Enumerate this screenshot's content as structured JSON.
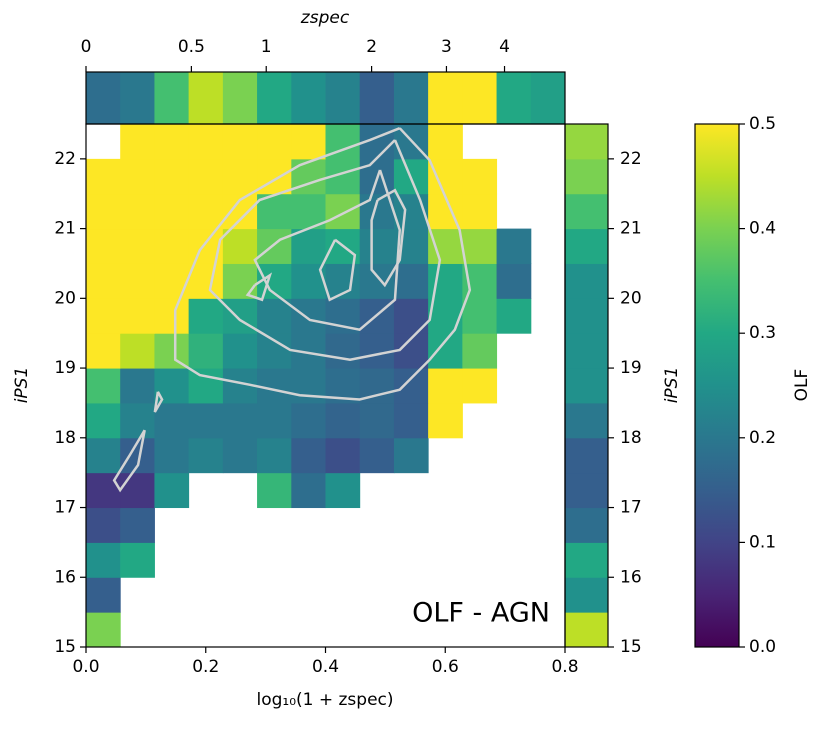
{
  "chart_data": {
    "type": "heatmap",
    "colormap": "viridis",
    "xlabel": "log₁₀(1 + zspec)",
    "ylabel": "iPS1",
    "top_label": "zspec",
    "right_label": "iPS1",
    "colorbar_label": "OLF",
    "annotation": "OLF - AGN",
    "xlim": [
      0,
      0.8
    ],
    "ylim": [
      15,
      22.5
    ],
    "xticks": [
      {
        "value": 0,
        "label": "0.0"
      },
      0.2,
      0.4,
      0.6,
      0.8
    ],
    "yticks": [
      15,
      16,
      17,
      18,
      19,
      20,
      21,
      22
    ],
    "top_ticks": [
      {
        "value": 0,
        "label": "0"
      },
      {
        "value": 0.176,
        "label": "0.5"
      },
      {
        "value": 0.301,
        "label": "1"
      },
      {
        "value": 0.477,
        "label": "2"
      },
      {
        "value": 0.602,
        "label": "3"
      },
      {
        "value": 0.699,
        "label": "4"
      }
    ],
    "clim": [
      0,
      0.5
    ],
    "cticks": [
      {
        "value": 0,
        "label": "0.0"
      },
      0.1,
      0.2,
      0.3,
      0.4,
      0.5
    ],
    "x_edges": [
      0,
      0.0571,
      0.1143,
      0.1714,
      0.2286,
      0.2857,
      0.3429,
      0.4,
      0.4571,
      0.5143,
      0.5714,
      0.6286,
      0.6857,
      0.7429,
      0.8
    ],
    "y_edges": [
      15,
      15.5,
      16,
      16.5,
      17,
      17.5,
      18,
      18.5,
      19,
      19.5,
      20,
      20.5,
      21,
      21.5,
      22,
      22.5
    ],
    "z": [
      [
        0.4,
        null,
        null,
        null,
        null,
        null,
        null,
        null,
        null,
        null,
        null,
        null,
        null,
        null
      ],
      [
        0.15,
        null,
        null,
        null,
        null,
        null,
        null,
        null,
        null,
        null,
        null,
        null,
        null,
        null
      ],
      [
        0.25,
        0.3,
        null,
        null,
        null,
        null,
        null,
        null,
        null,
        null,
        null,
        null,
        null,
        null
      ],
      [
        0.12,
        0.15,
        null,
        null,
        null,
        null,
        null,
        null,
        null,
        null,
        null,
        null,
        null,
        null
      ],
      [
        0.08,
        0.08,
        0.25,
        null,
        null,
        0.33,
        0.18,
        0.25,
        null,
        null,
        null,
        null,
        null,
        null
      ],
      [
        0.22,
        0.15,
        0.2,
        0.22,
        0.2,
        0.22,
        0.15,
        0.12,
        0.15,
        0.2,
        null,
        null,
        null,
        null
      ],
      [
        0.3,
        0.22,
        0.2,
        0.2,
        0.2,
        0.2,
        0.18,
        0.16,
        0.17,
        0.15,
        0.5,
        null,
        null,
        null
      ],
      [
        0.35,
        0.2,
        0.25,
        0.3,
        0.22,
        0.2,
        0.2,
        0.18,
        0.17,
        0.15,
        0.5,
        0.5,
        null,
        null
      ],
      [
        0.5,
        0.45,
        0.4,
        0.32,
        0.25,
        0.22,
        0.2,
        0.17,
        0.15,
        0.12,
        0.3,
        0.38,
        null,
        null
      ],
      [
        0.5,
        0.5,
        0.5,
        0.3,
        0.28,
        0.22,
        0.2,
        0.18,
        0.15,
        0.12,
        0.3,
        0.35,
        0.3,
        null
      ],
      [
        0.5,
        0.5,
        0.5,
        0.5,
        0.4,
        0.3,
        0.25,
        0.22,
        0.2,
        0.18,
        0.3,
        0.35,
        0.18,
        null
      ],
      [
        0.5,
        0.5,
        0.5,
        0.5,
        0.45,
        0.38,
        0.28,
        0.3,
        0.22,
        0.22,
        0.42,
        0.42,
        0.2,
        null
      ],
      [
        0.5,
        0.5,
        0.5,
        0.5,
        0.5,
        0.35,
        0.35,
        0.4,
        0.2,
        0.22,
        0.5,
        0.5,
        null,
        null
      ],
      [
        0.5,
        0.5,
        0.5,
        0.5,
        0.5,
        0.5,
        0.38,
        0.35,
        0.18,
        0.3,
        0.5,
        0.5,
        null,
        null
      ],
      [
        null,
        0.5,
        0.5,
        0.5,
        0.5,
        0.5,
        0.5,
        0.35,
        0.18,
        0.2,
        0.5,
        null,
        null,
        null
      ]
    ],
    "top_values": [
      0.18,
      0.2,
      0.35,
      0.45,
      0.4,
      0.3,
      0.25,
      0.22,
      0.15,
      0.2,
      0.5,
      0.5,
      0.3,
      0.28
    ],
    "right_values": [
      0.45,
      0.25,
      0.3,
      0.18,
      0.15,
      0.15,
      0.2,
      0.25,
      0.25,
      0.25,
      0.25,
      0.3,
      0.35,
      0.4,
      0.42
    ],
    "contour_color": "#d3d3d3",
    "contours": [
      {
        "x": [
          0.524,
          0.574,
          0.624,
          0.641,
          0.616,
          0.574,
          0.524,
          0.457,
          0.357,
          0.274,
          0.19,
          0.149,
          0.149,
          0.19,
          0.257,
          0.357,
          0.474,
          0.524
        ],
        "y": [
          22.44,
          21.98,
          20.98,
          20.12,
          19.55,
          19.12,
          18.69,
          18.55,
          18.61,
          18.76,
          18.9,
          19.12,
          19.83,
          20.69,
          21.41,
          21.91,
          22.27,
          22.44
        ]
      },
      {
        "x": [
          0.516,
          0.558,
          0.591,
          0.574,
          0.524,
          0.441,
          0.341,
          0.257,
          0.207,
          0.224,
          0.29,
          0.391,
          0.474,
          0.516
        ],
        "y": [
          22.27,
          21.41,
          20.55,
          19.69,
          19.26,
          19.12,
          19.26,
          19.69,
          20.12,
          20.84,
          21.41,
          21.7,
          21.91,
          22.27
        ]
      },
      {
        "x": [
          0.491,
          0.524,
          0.516,
          0.457,
          0.374,
          0.307,
          0.282,
          0.324,
          0.407,
          0.474,
          0.491
        ],
        "y": [
          21.84,
          20.98,
          19.98,
          19.55,
          19.69,
          20.12,
          20.55,
          20.84,
          21.12,
          21.41,
          21.84
        ]
      },
      {
        "x": [
          0.416,
          0.449,
          0.441,
          0.407,
          0.391,
          0.416
        ],
        "y": [
          20.84,
          20.62,
          20.12,
          19.98,
          20.41,
          20.84
        ]
      },
      {
        "x": [
          0.487,
          0.516,
          0.533,
          0.524,
          0.499,
          0.477,
          0.477,
          0.487
        ],
        "y": [
          21.41,
          21.55,
          21.27,
          20.55,
          20.19,
          20.41,
          21.12,
          21.41
        ]
      },
      {
        "x": [
          0.282,
          0.307,
          0.294,
          0.27,
          0.282
        ],
        "y": [
          20.19,
          20.33,
          19.98,
          20.05,
          20.19
        ]
      },
      {
        "x": [
          0.098,
          0.087,
          0.057,
          0.047,
          0.073,
          0.098
        ],
        "y": [
          18.11,
          17.61,
          17.25,
          17.39,
          17.75,
          18.11
        ]
      },
      {
        "x": [
          0.12,
          0.127,
          0.115,
          0.12
        ],
        "y": [
          18.66,
          18.55,
          18.37,
          18.66
        ]
      }
    ]
  }
}
